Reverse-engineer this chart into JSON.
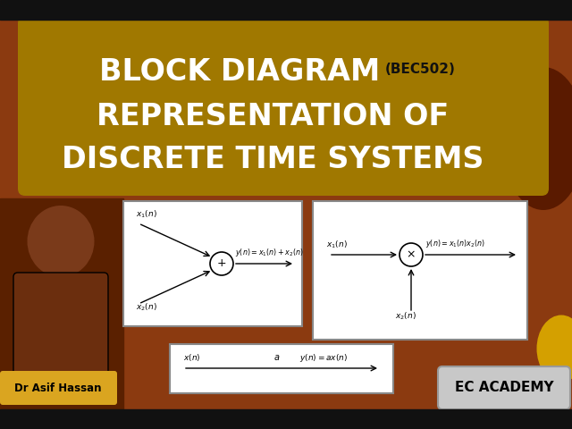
{
  "bg_color": "#8B3A10",
  "title_bg_color": "#A07800",
  "title_line1": "BLOCK DIAGRAM",
  "title_code": "(BEC502)",
  "title_line2": "REPRESENTATION OF",
  "title_line3": "DISCRETE TIME SYSTEMS",
  "title_text_color": "#FFFFFF",
  "code_text_color": "#111111",
  "panel_bg": "#FFFFFF",
  "panel_border": "#888888",
  "name_label": "Dr Asif Hassan",
  "name_bg": "#DAA520",
  "academy_label": "EC ACADEMY",
  "academy_bg": "#C8C8C8",
  "letterbox_color": "#111111",
  "dark_brown_ellipse": "#5A1A00",
  "gold_ellipse": "#D4A000"
}
